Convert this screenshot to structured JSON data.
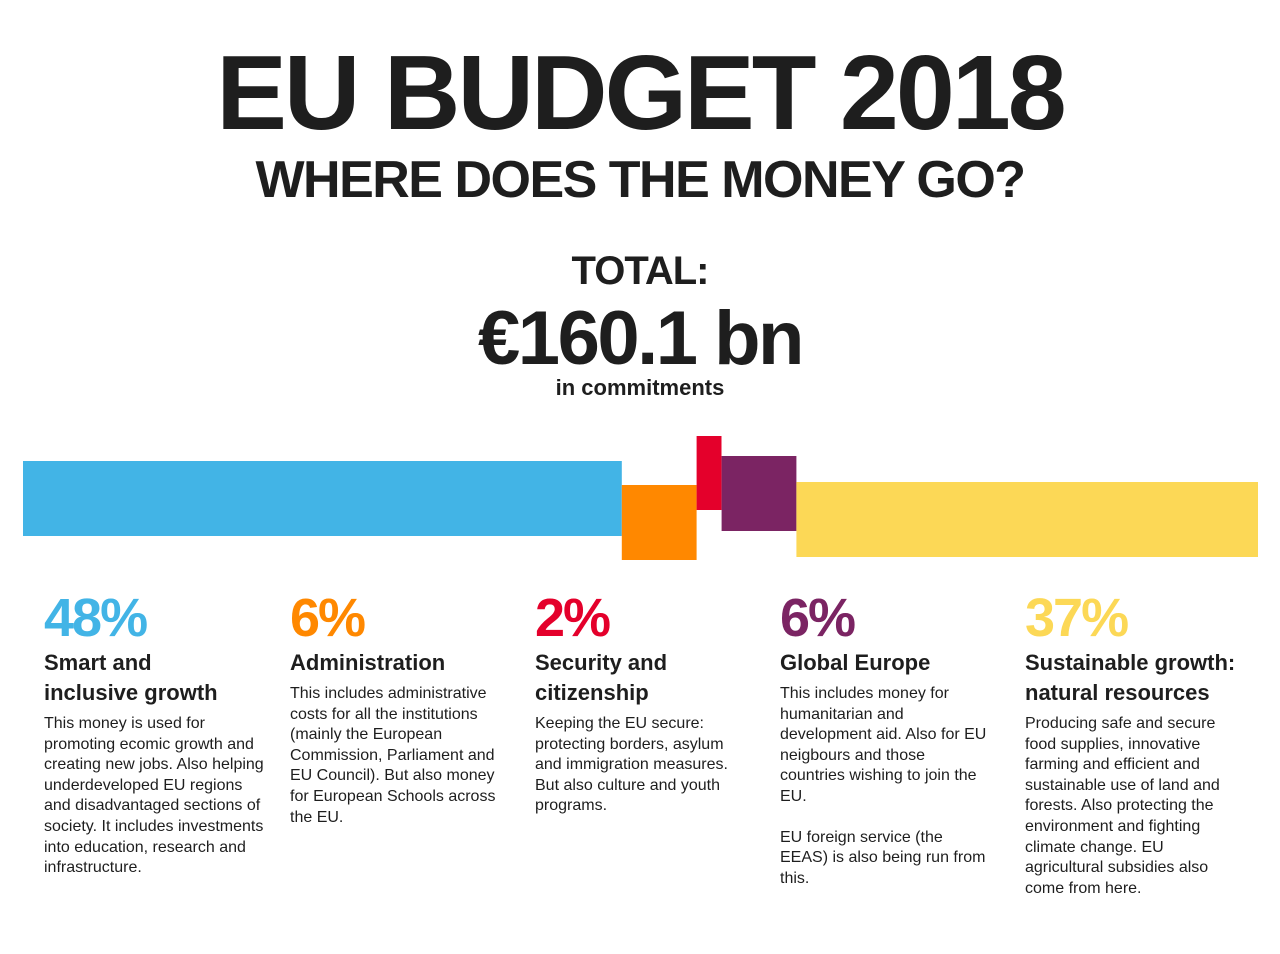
{
  "header": {
    "title": "EU BUDGET 2018",
    "subtitle": "WHERE DOES THE MONEY GO?"
  },
  "total": {
    "label": "TOTAL:",
    "value": "€160.1 bn",
    "note": "in commitments"
  },
  "chart_data": {
    "type": "bar",
    "series": [
      {
        "name": "Smart and inclusive growth",
        "value": 48,
        "color": "#42b4e6"
      },
      {
        "name": "Administration",
        "value": 6,
        "color": "#ff8800"
      },
      {
        "name": "Security and citizenship",
        "value": 2,
        "color": "#e4002b"
      },
      {
        "name": "Global Europe",
        "value": 6,
        "color": "#7b2463"
      },
      {
        "name": "Sustainable growth: natural resources",
        "value": 37,
        "color": "#fcd856"
      }
    ]
  },
  "categories": [
    {
      "pct": "48%",
      "heading": "Smart and inclusive growth",
      "color": "#42b4e6",
      "desc": "This money is used for promoting ecomic growth and creating new jobs. Also helping underdeveloped EU regions and disadvantaged sections of society. It includes investments into education, research and infrastructure."
    },
    {
      "pct": "6%",
      "heading": "Administration",
      "color": "#ff8800",
      "desc": "This includes administrative costs for all the institutions (mainly the European Commission, Parliament and EU Council). But also money for European Schools across the EU."
    },
    {
      "pct": "2%",
      "heading": "Security and citizenship",
      "color": "#e4002b",
      "desc": "Keeping the EU secure: protecting borders, asylum and immigration measures. But also culture and youth programs."
    },
    {
      "pct": "6%",
      "heading": "Global Europe",
      "color": "#7b2463",
      "desc": "This includes money for humanitarian and development aid. Also for EU neigbours and those countries wishing to join the EU.",
      "desc2": "EU foreign service (the EEAS) is also being run from this."
    },
    {
      "pct": "37%",
      "heading": "Sustainable growth: natural resources",
      "color": "#fcd856",
      "desc": "Producing safe and secure food supplies, innovative farming and efficient and sustainable use of land and forests. Also protecting the environment and fighting climate change. EU agricultural subsidies also come from here."
    }
  ]
}
